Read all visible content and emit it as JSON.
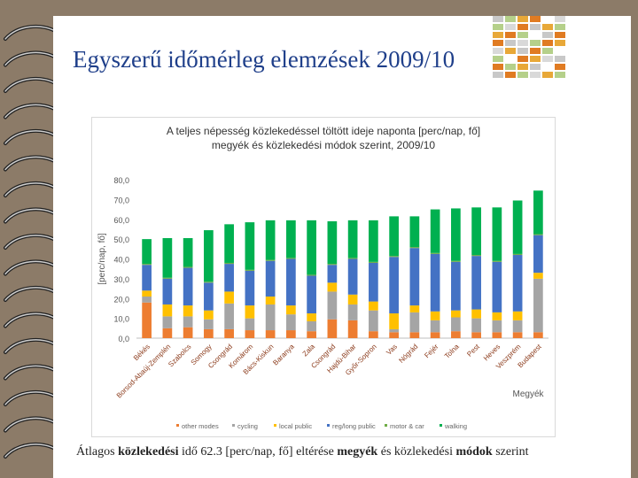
{
  "slide": {
    "title": "Egyszerű időmérleg elemzések 2009/10",
    "footer": {
      "part1": "Átlagos ",
      "bold1": "közlekedési",
      "part2": " idő 62.3 [perc/nap, fő] eltérése ",
      "bold2": "megyék",
      "part3": " és közlekedési ",
      "bold3": "módok",
      "part4": " szerint"
    }
  },
  "colors": {
    "background": "#8c7b68",
    "title": "#1f3f8a",
    "other_modes": "#ed7d31",
    "cycling": "#a5a5a5",
    "local_public": "#ffc000",
    "reg_long_public": "#4472c4",
    "motor_car": "#70ad47",
    "walking": "#00b050"
  },
  "chart_data": {
    "type": "bar",
    "stacked": true,
    "title_line1": "A teljes népesség közlekedéssel töltött ideje naponta [perc/nap, fő]",
    "title_line2": "megyék és közlekedési módok szerint, 2009/10",
    "ylabel": "[perc/nap, fő]",
    "xlabel": "Megyék",
    "ylim": [
      0,
      80
    ],
    "yticks": [
      "0,0",
      "10,0",
      "20,0",
      "30,0",
      "40,0",
      "50,0",
      "60,0",
      "70,0",
      "80,0"
    ],
    "grid": false,
    "legend_position": "bottom",
    "categories": [
      "Békés",
      "Borsod-Abaúj-Zemplén",
      "Szabolcs",
      "Somogy",
      "Csongrád",
      "Komárom",
      "Bács-Kiskun",
      "Baranya",
      "Zala",
      "Csongrád ",
      "Hajdú-Bihar",
      "Győr-Sopron",
      "Vas",
      "Nógrád",
      "Fejér",
      "Tolna",
      "Pest",
      "Heves",
      "Veszprém",
      "Budapest"
    ],
    "series": [
      {
        "name": "other modes",
        "color_key": "other_modes",
        "values": [
          18.0,
          5.0,
          5.5,
          4.5,
          4.5,
          4.0,
          4.0,
          4.0,
          3.5,
          9.5,
          9.0,
          3.5,
          3.0,
          3.0,
          3.0,
          3.5,
          3.0,
          3.0,
          3.0,
          3.0
        ]
      },
      {
        "name": "cycling",
        "color_key": "cycling",
        "values": [
          3.0,
          6.0,
          5.5,
          5.0,
          13.0,
          6.0,
          13.0,
          8.0,
          5.0,
          14.0,
          8.0,
          10.5,
          1.5,
          10.0,
          6.0,
          7.0,
          7.0,
          6.0,
          6.0,
          27.0
        ]
      },
      {
        "name": "local public",
        "color_key": "local_public",
        "values": [
          3.0,
          6.0,
          5.5,
          4.5,
          6.0,
          6.5,
          4.0,
          4.5,
          4.0,
          4.5,
          5.0,
          4.5,
          8.0,
          3.5,
          4.5,
          3.5,
          4.5,
          4.0,
          4.5,
          3.0
        ]
      },
      {
        "name": "reg/long public",
        "color_key": "reg_long_public",
        "values": [
          13.0,
          13.0,
          19.0,
          14.0,
          14.0,
          17.5,
          18.0,
          23.5,
          19.0,
          9.0,
          18.0,
          19.5,
          28.5,
          29.0,
          29.0,
          24.5,
          27.0,
          25.5,
          28.5,
          19.0
        ]
      },
      {
        "name": "motor & car",
        "color_key": "motor_car",
        "values": [
          0.5,
          0.5,
          0.5,
          0.5,
          0.5,
          0.5,
          0.5,
          0.5,
          0.5,
          0.5,
          0.5,
          0.5,
          0.5,
          0.5,
          0.5,
          0.5,
          0.5,
          0.5,
          0.5,
          0.5
        ]
      },
      {
        "name": "walking",
        "color_key": "walking",
        "values": [
          12.5,
          20.0,
          14.5,
          26.0,
          19.5,
          24.0,
          20.0,
          19.0,
          27.5,
          21.5,
          19.0,
          21.0,
          20.0,
          15.5,
          22.0,
          26.5,
          24.0,
          27.0,
          27.0,
          22.0
        ]
      }
    ]
  }
}
